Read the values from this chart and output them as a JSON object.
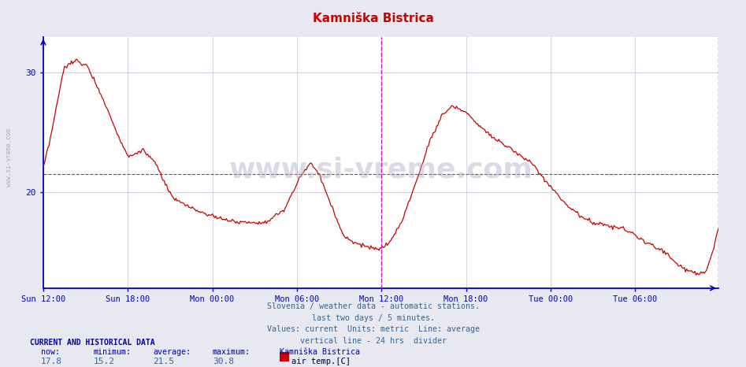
{
  "title": "Kamniška Bistrica",
  "title_color": "#cc0000",
  "bg_color": "#e8e8f0",
  "plot_bg_color": "#ffffff",
  "grid_color": "#ccccdd",
  "line_color": "#cc0000",
  "avg_line_color": "#cc0000",
  "vline_color": "#dd00dd",
  "axis_color": "#0000cc",
  "tick_label_color": "#000066",
  "watermark_color": "#aaaacc",
  "footnote_color": "#336699",
  "footer_label_color": "#0000aa",
  "ylim": [
    12,
    33
  ],
  "yticks": [
    20,
    30
  ],
  "ytick_labels": [
    "20",
    "30"
  ],
  "avg_value": 21.5,
  "now_value": 17.8,
  "min_value": 15.2,
  "max_value": 30.8,
  "x_tick_positions": [
    0,
    72,
    144,
    216,
    288,
    360,
    432,
    504
  ],
  "x_tick_labels": [
    "Sun 12:00",
    "Sun 18:00",
    "Mon 00:00",
    "Mon 06:00",
    "Mon 12:00",
    "Mon 18:00",
    "Tue 00:00",
    "Tue 06:00"
  ],
  "vline_x": 288,
  "total_points": 576,
  "footnote_lines": [
    "Slovenia / weather data - automatic stations.",
    "last two days / 5 minutes.",
    "Values: current  Units: metric  Line: average",
    "vertical line - 24 hrs  divider"
  ],
  "current_label": "CURRENT AND HISTORICAL DATA",
  "table_headers": [
    "now:",
    "minimum:",
    "average:",
    "maximum:",
    "Kamniška Bistrica"
  ],
  "table_values": [
    "17.8",
    "15.2",
    "21.5",
    "30.8",
    "air temp.[C]"
  ],
  "legend_color": "#cc0000",
  "watermark": "www.si-vreme.com",
  "left_watermark": "www.si-vreme.com"
}
